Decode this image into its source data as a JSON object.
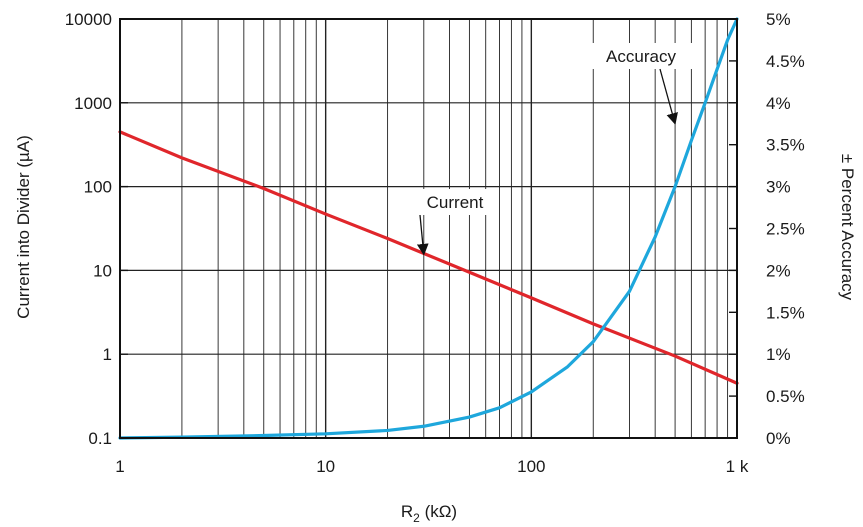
{
  "chart_data": {
    "type": "line",
    "x_axis": {
      "scale": "log",
      "range": [
        1,
        1000
      ],
      "tick_labels": [
        "1",
        "10",
        "100",
        "1 k"
      ],
      "title_base": "R",
      "title_sub": "2",
      "title_rest": " (kΩ)"
    },
    "y_left": {
      "scale": "log",
      "range": [
        0.1,
        10000
      ],
      "tick_labels": [
        "0.1",
        "1",
        "10",
        "100",
        "1000",
        "10000"
      ],
      "title": "Current into Divider (µA)"
    },
    "y_right": {
      "scale": "linear",
      "range": [
        0,
        5
      ],
      "tick_labels": [
        "0%",
        "0.5%",
        "1%",
        "1.5%",
        "2%",
        "2.5%",
        "3%",
        "3.5%",
        "4%",
        "4.5%",
        "5%"
      ],
      "title": "± Percent Accuracy"
    },
    "grid": true,
    "series": [
      {
        "name": "Current",
        "axis": "left",
        "color": "#e0262b",
        "x": [
          1,
          2,
          5,
          10,
          20,
          50,
          100,
          200,
          500,
          1000
        ],
        "y": [
          450,
          220,
          95,
          47,
          24,
          9.5,
          4.7,
          2.3,
          0.95,
          0.45
        ]
      },
      {
        "name": "Accuracy",
        "axis": "right",
        "color": "#1ea7dc",
        "x": [
          1,
          2,
          5,
          10,
          20,
          30,
          50,
          70,
          100,
          150,
          200,
          300,
          400,
          500,
          600,
          700,
          800,
          900,
          1000
        ],
        "y": [
          0.0,
          0.01,
          0.03,
          0.05,
          0.09,
          0.14,
          0.25,
          0.36,
          0.55,
          0.85,
          1.15,
          1.75,
          2.4,
          3.0,
          3.55,
          4.0,
          4.4,
          4.75,
          5.0
        ]
      }
    ],
    "annotations": [
      {
        "text": "Current",
        "series": "Current"
      },
      {
        "text": "Accuracy",
        "series": "Accuracy"
      }
    ]
  }
}
